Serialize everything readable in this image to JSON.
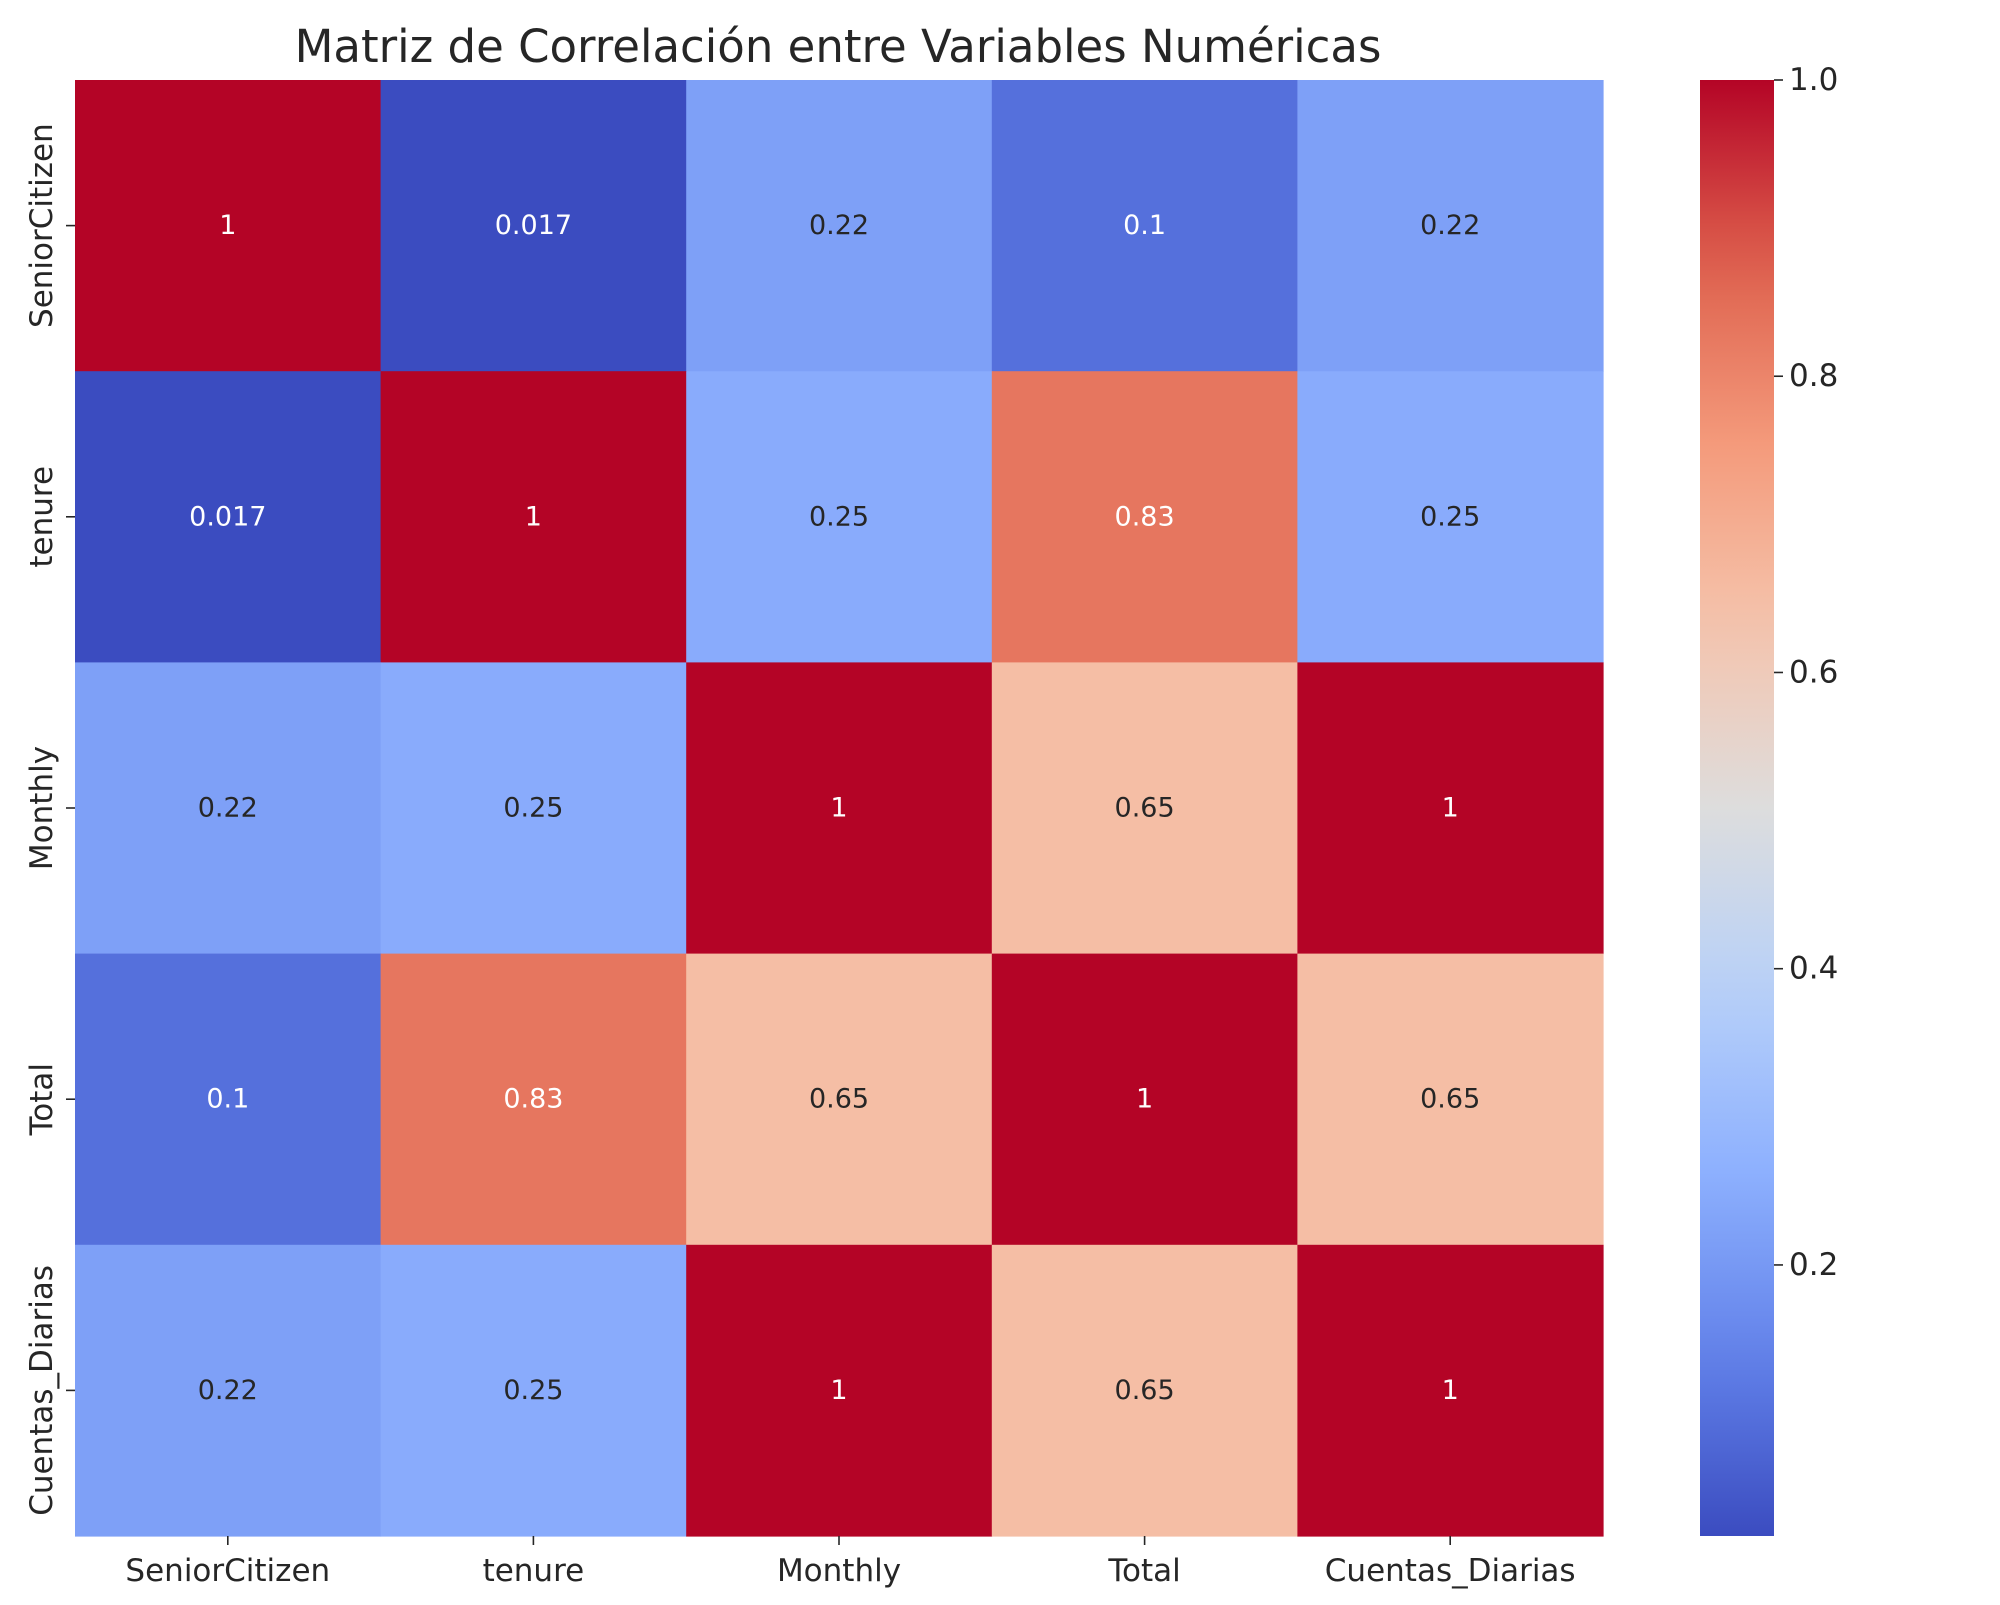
{
  "chart_data": {
    "type": "heatmap",
    "title": "Matriz de Correlación entre Variables Numéricas",
    "xlabel": "",
    "ylabel": "",
    "x_categories": [
      "SeniorCitizen",
      "tenure",
      "Monthly",
      "Total",
      "Cuentas_Diarias"
    ],
    "y_categories": [
      "SeniorCitizen",
      "tenure",
      "Monthly",
      "Total",
      "Cuentas_Diarias"
    ],
    "values": [
      [
        1,
        0.017,
        0.22,
        0.1,
        0.22
      ],
      [
        0.017,
        1,
        0.25,
        0.83,
        0.25
      ],
      [
        0.22,
        0.25,
        1,
        0.65,
        1
      ],
      [
        0.1,
        0.83,
        0.65,
        1,
        0.65
      ],
      [
        0.22,
        0.25,
        1,
        0.65,
        1
      ]
    ],
    "annotations": [
      [
        "1",
        "0.017",
        "0.22",
        "0.1",
        "0.22"
      ],
      [
        "0.017",
        "1",
        "0.25",
        "0.83",
        "0.25"
      ],
      [
        "0.22",
        "0.25",
        "1",
        "0.65",
        "1"
      ],
      [
        "0.1",
        "0.83",
        "0.65",
        "1",
        "0.65"
      ],
      [
        "0.22",
        "0.25",
        "1",
        "0.65",
        "1"
      ]
    ],
    "colormap": "coolwarm",
    "color_range": [
      0.017,
      1
    ],
    "colorbar": {
      "ticks": [
        0.2,
        0.4,
        0.6,
        0.8,
        1.0
      ],
      "tick_labels": [
        "0.2",
        "0.4",
        "0.6",
        "0.8",
        "1.0"
      ]
    },
    "grid": false
  }
}
